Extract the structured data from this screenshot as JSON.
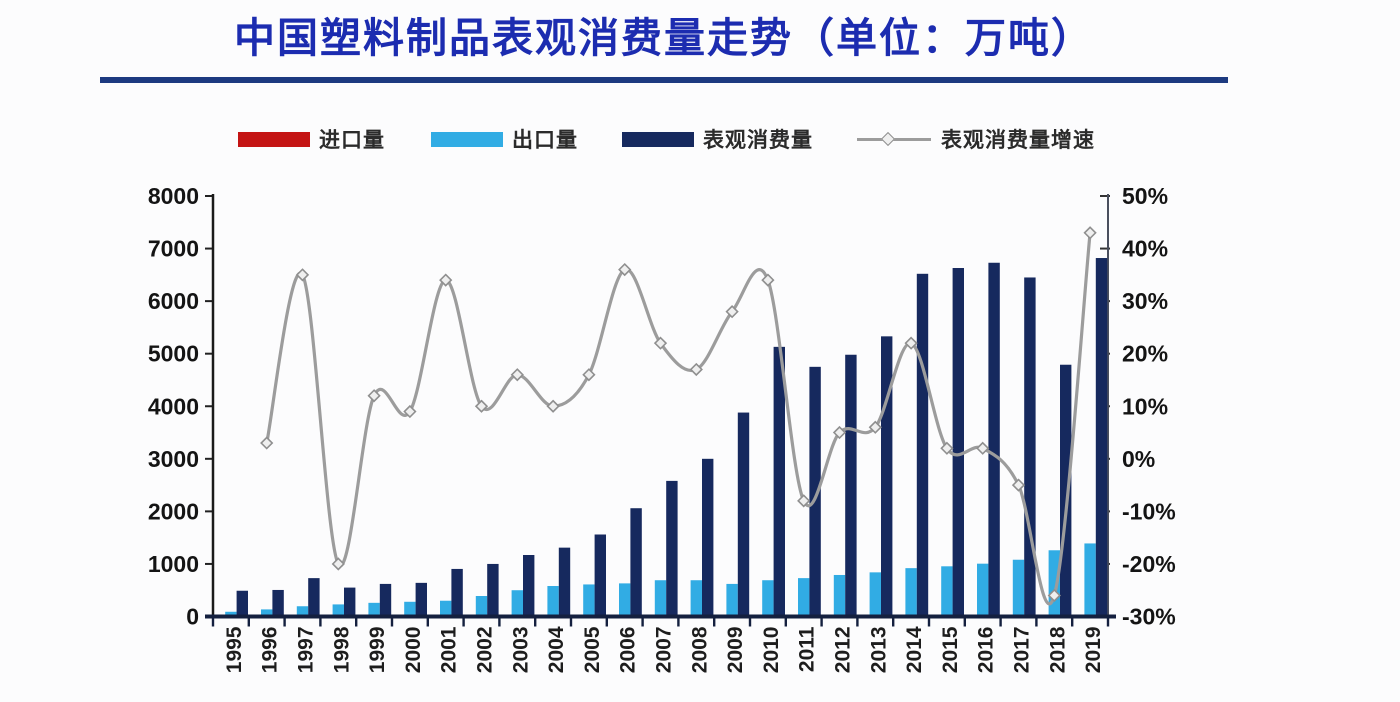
{
  "page": {
    "background": "#fcfcfd"
  },
  "title": {
    "text": "中国塑料制品表观消费量走势（单位：万吨）",
    "color": "#1c2cb0",
    "underline_color": "#1d3a80"
  },
  "legend": [
    {
      "label": "进口量",
      "type": "bar",
      "color": "#c41414"
    },
    {
      "label": "出口量",
      "type": "bar",
      "color": "#31ace4"
    },
    {
      "label": "表观消费量",
      "type": "bar",
      "color": "#16295e"
    },
    {
      "label": "表观消费量增速",
      "type": "line",
      "color": "#9c9c9c"
    }
  ],
  "chart_data": {
    "type": "bar",
    "subtype": "grouped-bars-with-line",
    "title": "中国塑料制品表观消费量走势（单位：万吨）",
    "xlabel": "",
    "ylabel_left": "万吨",
    "ylabel_right": "%",
    "grid": false,
    "legend_position": "top",
    "categories": [
      1995,
      1996,
      1997,
      1998,
      1999,
      2000,
      2001,
      2002,
      2003,
      2004,
      2005,
      2006,
      2007,
      2008,
      2009,
      2010,
      2011,
      2012,
      2013,
      2014,
      2015,
      2016,
      2017,
      2018,
      2019
    ],
    "series": [
      {
        "name": "进口量",
        "type": "bar",
        "axis": "left",
        "color": "#c41414",
        "values": [
          0,
          0,
          0,
          0,
          0,
          0,
          0,
          0,
          0,
          0,
          0,
          0,
          0,
          0,
          0,
          0,
          0,
          0,
          0,
          0,
          0,
          0,
          0,
          0,
          0
        ]
      },
      {
        "name": "出口量",
        "type": "bar",
        "axis": "left",
        "color": "#31ace4",
        "values": [
          90,
          135,
          195,
          230,
          260,
          280,
          300,
          390,
          500,
          580,
          610,
          630,
          690,
          690,
          620,
          690,
          730,
          790,
          840,
          920,
          955,
          1005,
          1080,
          1260,
          1390
        ]
      },
      {
        "name": "表观消费量",
        "type": "bar",
        "axis": "left",
        "color": "#16295e",
        "values": [
          490,
          505,
          730,
          550,
          620,
          640,
          905,
          1000,
          1170,
          1310,
          1560,
          2060,
          2580,
          3000,
          3880,
          5130,
          4750,
          4980,
          5330,
          6520,
          6630,
          6730,
          6450,
          4790,
          6820
        ]
      },
      {
        "name": "表观消费量增速",
        "type": "line",
        "axis": "right",
        "unit": "%",
        "color": "#9c9c9c",
        "marker": "diamond",
        "values": [
          null,
          3,
          35,
          -20,
          12,
          9,
          34,
          10,
          16,
          10,
          16,
          36,
          22,
          17,
          28,
          34,
          -8,
          5,
          6,
          22,
          2,
          2,
          -5,
          -26,
          43
        ]
      }
    ],
    "left_axis": {
      "min": 0,
      "max": 8000,
      "step": 1000,
      "tick_labels": [
        "0",
        "1000",
        "2000",
        "3000",
        "4000",
        "5000",
        "6000",
        "7000",
        "8000"
      ]
    },
    "right_axis": {
      "min": -30,
      "max": 50,
      "step": 10,
      "tick_labels": [
        "-30%",
        "-20%",
        "-10%",
        "0%",
        "10%",
        "20%",
        "30%",
        "40%",
        "50%"
      ]
    }
  }
}
